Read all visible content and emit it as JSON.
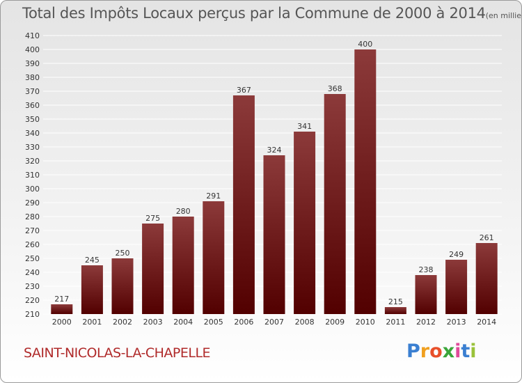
{
  "title": {
    "main": "Total des Impôts Locaux perçus par la Commune de 2000 à 2014",
    "unit": "(en milliers d'€)"
  },
  "commune": "SAINT-NICOLAS-LA-CHAPELLE",
  "logo": {
    "text": "Proxiti",
    "letters": [
      "P",
      "r",
      "o",
      "x",
      "i",
      "t",
      "i"
    ],
    "colors": [
      "#3a7fd1",
      "#f0a020",
      "#e8502a",
      "#3aa63a",
      "#e04a9a",
      "#3a7fd1",
      "#9ac23a"
    ]
  },
  "colors": {
    "bar_top": "#8c3a3a",
    "bar_bottom": "#520000",
    "grid": "#ffffff",
    "axis_text": "#333333"
  },
  "chart_data": {
    "type": "bar",
    "title": "Total des Impôts Locaux perçus par la Commune de 2000 à 2014",
    "xlabel": "",
    "ylabel": "",
    "categories": [
      "2000",
      "2001",
      "2002",
      "2003",
      "2004",
      "2005",
      "2006",
      "2007",
      "2008",
      "2009",
      "2010",
      "2011",
      "2012",
      "2013",
      "2014"
    ],
    "values": [
      217,
      245,
      250,
      275,
      280,
      291,
      367,
      324,
      341,
      368,
      400,
      215,
      238,
      249,
      261
    ],
    "ylim": [
      210,
      410
    ],
    "ytick_step": 10,
    "grid": true
  }
}
